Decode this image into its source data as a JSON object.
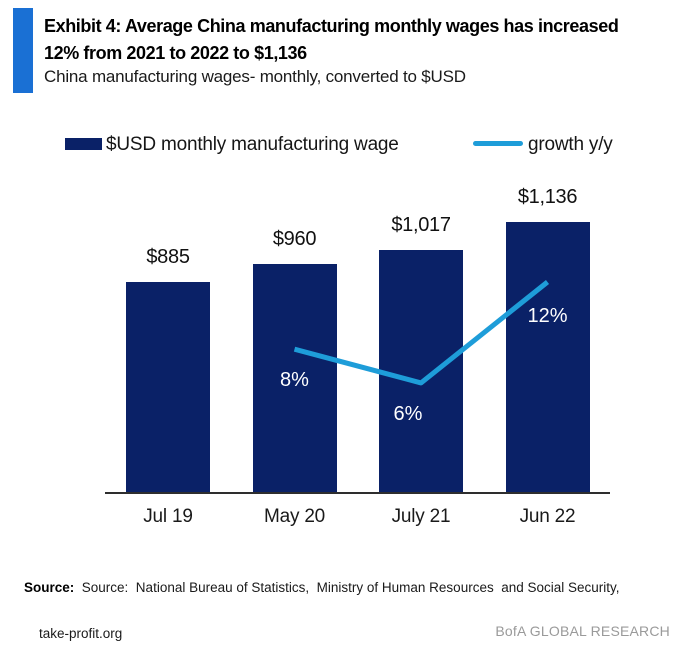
{
  "header": {
    "title_line1": "Exhibit 4: Average China manufacturing monthly wages has increased",
    "title_line2": "12% from 2021 to 2022 to $1,136",
    "subtitle": "China manufacturing wages- monthly, converted to $USD"
  },
  "legend": {
    "bar_label": "$USD monthly manufacturing wage",
    "line_label": "growth y/y"
  },
  "chart_data": {
    "type": "bar",
    "categories": [
      "Jul 19",
      "May 20",
      "July 21",
      "Jun 22"
    ],
    "series": [
      {
        "name": "$USD monthly manufacturing wage",
        "type": "bar",
        "axis": "primary",
        "values": [
          885,
          960,
          1017,
          1136
        ],
        "value_labels": [
          "$885",
          "$960",
          "$1,017",
          "$1,136"
        ],
        "color": "#0A2167"
      },
      {
        "name": "growth y/y",
        "type": "line",
        "axis": "secondary",
        "values": [
          null,
          8,
          6,
          12
        ],
        "value_labels": [
          null,
          "8%",
          "6%",
          "12%"
        ],
        "color": "#1E9DD9"
      }
    ],
    "xlabel": "",
    "ylabel": "",
    "ylim_primary": [
      0,
      1200
    ],
    "ylim_secondary_pct": [
      0,
      16
    ],
    "grid": false,
    "legend_position": "top",
    "value_labels_shown": true
  },
  "footer": {
    "source_label": "Source:",
    "source_line1": "Source:  National Bureau of Statistics,  Ministry of Human Resources  and Social Security,",
    "source_line2": "take-profit.org",
    "brand": "BofA GLOBAL RESEARCH"
  },
  "colors": {
    "accent_bar": "#1A70D4",
    "bar_navy": "#0A2167",
    "growth_line": "#1E9DD9",
    "axis_line": "#2E2E2E",
    "pct_label": "#FFFFFF",
    "brand_gray": "#9A9A9A"
  }
}
